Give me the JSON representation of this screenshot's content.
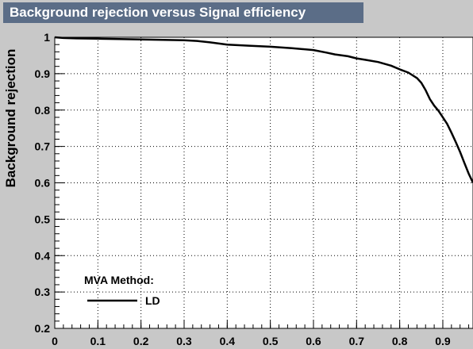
{
  "chart_data": {
    "type": "line",
    "title": "Background rejection versus Signal efficiency",
    "xlabel": "",
    "ylabel": "Background rejection",
    "xlim": [
      0,
      0.97
    ],
    "ylim": [
      0.2,
      1.0
    ],
    "grid": true,
    "x_ticks": [
      0,
      0.1,
      0.2,
      0.3,
      0.4,
      0.5,
      0.6,
      0.7,
      0.8,
      0.9
    ],
    "x_tick_labels": [
      "0",
      "0.1",
      "0.2",
      "0.3",
      "0.4",
      "0.5",
      "0.6",
      "0.7",
      "0.8",
      "0.9"
    ],
    "y_ticks": [
      0.2,
      0.3,
      0.4,
      0.5,
      0.6,
      0.7,
      0.8,
      0.9,
      1.0
    ],
    "y_tick_labels": [
      "0.2",
      "0.3",
      "0.4",
      "0.5",
      "0.6",
      "0.7",
      "0.8",
      "0.9",
      "1"
    ],
    "legend": {
      "title": "MVA Method:",
      "placement": "bottom-left",
      "entries": [
        "LD"
      ]
    },
    "series": [
      {
        "name": "LD",
        "color": "#000000",
        "x": [
          0.0,
          0.02,
          0.05,
          0.1,
          0.15,
          0.2,
          0.25,
          0.3,
          0.33,
          0.36,
          0.4,
          0.45,
          0.5,
          0.55,
          0.6,
          0.63,
          0.65,
          0.68,
          0.7,
          0.72,
          0.75,
          0.78,
          0.8,
          0.82,
          0.84,
          0.85,
          0.86,
          0.87,
          0.88,
          0.89,
          0.9,
          0.91,
          0.92,
          0.93,
          0.94,
          0.95,
          0.96,
          0.97
        ],
        "y": [
          1.0,
          0.998,
          0.997,
          0.996,
          0.995,
          0.994,
          0.993,
          0.992,
          0.99,
          0.986,
          0.98,
          0.977,
          0.974,
          0.97,
          0.965,
          0.958,
          0.953,
          0.948,
          0.942,
          0.938,
          0.932,
          0.922,
          0.912,
          0.903,
          0.888,
          0.875,
          0.855,
          0.83,
          0.812,
          0.798,
          0.78,
          0.762,
          0.738,
          0.712,
          0.685,
          0.655,
          0.625,
          0.6
        ]
      }
    ]
  }
}
